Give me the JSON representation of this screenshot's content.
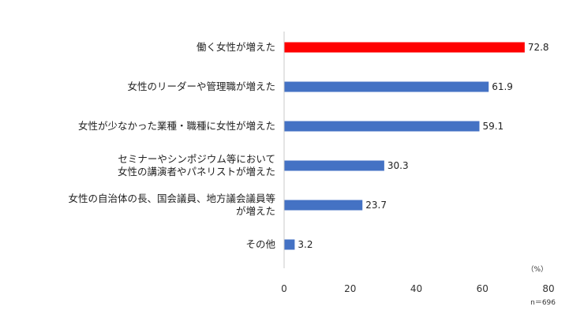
{
  "chart_data": {
    "type": "bar",
    "orientation": "horizontal",
    "categories": [
      [
        "働く女性が増えた"
      ],
      [
        "女性のリーダーや管理職が増えた"
      ],
      [
        "女性が少なかった業種・職種に女性が増えた"
      ],
      [
        "セミナーやシンポジウム等において",
        "女性の講演者やパネリストが増えた"
      ],
      [
        "女性の自治体の長、国会議員、地方議会議員等",
        "が増えた"
      ],
      [
        "その他"
      ]
    ],
    "values": [
      72.8,
      61.9,
      59.1,
      30.3,
      23.7,
      3.2
    ],
    "value_labels": [
      "72.8",
      "61.9",
      "59.1",
      "30.3",
      "23.7",
      "3.2"
    ],
    "bar_colors": [
      "#ff0000",
      "#4472c4",
      "#4472c4",
      "#4472c4",
      "#4472c4",
      "#4472c4"
    ],
    "xlim": [
      0,
      80
    ],
    "x_ticks": [
      "0",
      "20",
      "40",
      "60",
      "80"
    ],
    "unit_label": "（%）",
    "sample_note": "n＝696",
    "grid": false,
    "legend": "none"
  }
}
